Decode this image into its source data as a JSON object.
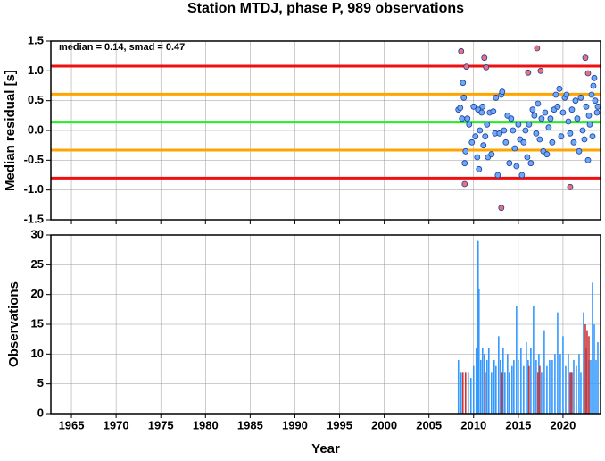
{
  "chart_data": [
    {
      "type": "scatter",
      "title": "Station MTDJ, phase P, 989 observations",
      "y_label": "Median residual [s]",
      "annotation": "median = 0.14, smad = 0.47",
      "xlim": [
        1962.7,
        2024.2
      ],
      "xticks": [
        1965,
        1970,
        1975,
        1980,
        1985,
        1990,
        1995,
        2000,
        2005,
        2010,
        2015,
        2020
      ],
      "ylim": [
        -1.5,
        1.5
      ],
      "yticks": [
        -1.5,
        {
          "value": -1,
          "label": "-1.0"
        },
        -0.5,
        {
          "value": 0,
          "label": "0.0"
        },
        0.5,
        {
          "value": 1,
          "label": "1.0"
        },
        1.5
      ],
      "grid": true,
      "lines": [
        {
          "value": 1.08,
          "color": "#ee1111"
        },
        {
          "value": 0.61,
          "color": "#ffa500"
        },
        {
          "value": 0.14,
          "color": "#22ee22"
        },
        {
          "value": -0.33,
          "color": "#ffa500"
        },
        {
          "value": -0.8,
          "color": "#ee1111"
        }
      ],
      "series": [
        {
          "color": "#6fa8f5",
          "x": [
            2008.3,
            2008.5,
            2008.7,
            2008.8,
            2008.9,
            2009.0,
            2009.1,
            2009.3,
            2009.5,
            2009.8,
            2010.0,
            2010.2,
            2010.4,
            2010.5,
            2010.6,
            2010.7,
            2010.9,
            2011.0,
            2011.1,
            2011.3,
            2011.5,
            2011.6,
            2011.8,
            2012.0,
            2012.2,
            2012.4,
            2012.5,
            2012.7,
            2012.9,
            2013.1,
            2013.2,
            2013.4,
            2013.6,
            2013.8,
            2014.0,
            2014.2,
            2014.4,
            2014.6,
            2014.8,
            2015.0,
            2015.2,
            2015.4,
            2015.6,
            2015.8,
            2016.0,
            2016.2,
            2016.4,
            2016.6,
            2016.8,
            2017.0,
            2017.2,
            2017.4,
            2017.6,
            2017.8,
            2018.0,
            2018.2,
            2018.4,
            2018.6,
            2018.8,
            2019.0,
            2019.2,
            2019.4,
            2019.6,
            2019.8,
            2020.0,
            2020.2,
            2020.4,
            2020.6,
            2020.8,
            2021.0,
            2021.2,
            2021.4,
            2021.6,
            2021.8,
            2022.0,
            2022.2,
            2022.4,
            2022.6,
            2022.8,
            2022.9,
            2023.0,
            2023.2,
            2023.3,
            2023.4,
            2023.5,
            2023.6,
            2023.8,
            2023.9
          ],
          "values": [
            0.35,
            0.38,
            0.2,
            0.8,
            0.55,
            -0.55,
            -0.35,
            0.2,
            0.1,
            -0.2,
            0.4,
            -0.1,
            -0.45,
            0.35,
            -0.65,
            0.0,
            0.3,
            0.4,
            -0.25,
            -0.1,
            0.1,
            -0.45,
            0.3,
            -0.4,
            0.32,
            -0.05,
            0.55,
            -0.75,
            -0.05,
            0.6,
            0.65,
            0.0,
            -0.2,
            0.25,
            -0.55,
            0.2,
            0.0,
            -0.3,
            -0.6,
            0.1,
            -0.15,
            -0.75,
            -0.2,
            0.0,
            -0.45,
            0.1,
            -0.55,
            0.35,
            0.25,
            -0.05,
            0.45,
            -0.15,
            0.2,
            -0.35,
            0.3,
            -0.4,
            0.05,
            0.2,
            -0.2,
            0.35,
            0.6,
            0.4,
            0.7,
            -0.1,
            0.3,
            0.55,
            0.6,
            0.15,
            -0.05,
            0.35,
            -0.2,
            0.5,
            0.2,
            -0.35,
            0.55,
            0.0,
            -0.15,
            0.4,
            -0.5,
            0.25,
            0.1,
            0.6,
            -0.1,
            0.75,
            0.88,
            0.5,
            0.3,
            0.4
          ]
        },
        {
          "color": "#f07070",
          "x": [
            2008.6,
            2009.0,
            2009.2,
            2011.2,
            2011.4,
            2013.1,
            2016.1,
            2017.1,
            2017.5,
            2020.8,
            2022.5,
            2022.8
          ],
          "values": [
            1.33,
            -0.9,
            1.07,
            1.22,
            1.06,
            -1.3,
            0.97,
            1.38,
            1.0,
            -0.95,
            1.22,
            0.96
          ]
        }
      ]
    },
    {
      "type": "bar",
      "x_label": "Year",
      "y_label": "Observations",
      "xlim": [
        1962.7,
        2024.2
      ],
      "xticks": [
        1965,
        1970,
        1975,
        1980,
        1985,
        1990,
        1995,
        2000,
        2005,
        2010,
        2015,
        2020
      ],
      "ylim": [
        0,
        30
      ],
      "yticks": [
        0,
        5,
        10,
        15,
        20,
        25,
        30
      ],
      "grid": true,
      "series": [
        {
          "color": "#3399ff",
          "x": [
            2008.3,
            2008.6,
            2009.4,
            2009.7,
            2010.0,
            2010.3,
            2010.5,
            2010.6,
            2010.8,
            2011.0,
            2011.2,
            2011.5,
            2011.7,
            2012.0,
            2012.3,
            2012.5,
            2012.8,
            2013.0,
            2013.3,
            2013.5,
            2013.8,
            2014.0,
            2014.3,
            2014.5,
            2014.8,
            2015.0,
            2015.3,
            2015.6,
            2015.9,
            2016.1,
            2016.4,
            2016.7,
            2017.0,
            2017.3,
            2017.6,
            2017.9,
            2018.2,
            2018.5,
            2018.8,
            2019.1,
            2019.4,
            2019.7,
            2020.0,
            2020.3,
            2020.6,
            2020.9,
            2021.2,
            2021.5,
            2021.8,
            2022.0,
            2022.3,
            2022.6,
            2022.9,
            2023.1,
            2023.3,
            2023.5,
            2023.7,
            2023.9
          ],
          "values": [
            9,
            7,
            7,
            6,
            8,
            11,
            29,
            21,
            9,
            11,
            10,
            9,
            11,
            7,
            9,
            8,
            13,
            9,
            11,
            7,
            10,
            7,
            8,
            9,
            18,
            9,
            11,
            8,
            12,
            9,
            11,
            18,
            9,
            10,
            7,
            14,
            8,
            9,
            9,
            10,
            17,
            10,
            13,
            8,
            10,
            7,
            9,
            8,
            10,
            7,
            17,
            11,
            9,
            9,
            22,
            15,
            9,
            12
          ]
        },
        {
          "color": "#cc3333",
          "x": [
            2008.8,
            2009.1,
            2011.3,
            2013.2,
            2016.2,
            2017.2,
            2017.4,
            2020.8,
            2021.0,
            2022.5,
            2022.7,
            2022.9
          ],
          "values": [
            7,
            7,
            7,
            7,
            8,
            7,
            8,
            7,
            7,
            15,
            14,
            13
          ]
        }
      ]
    }
  ]
}
